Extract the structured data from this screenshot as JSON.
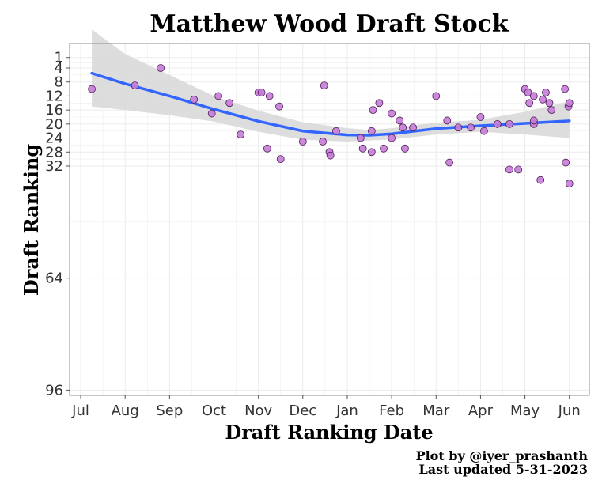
{
  "chart_data": {
    "type": "scatter",
    "title": "Matthew Wood Draft Stock",
    "xlabel": "Draft Ranking Date",
    "ylabel": "Draft Ranking",
    "x_ticks": [
      "Jul",
      "Aug",
      "Sep",
      "Oct",
      "Nov",
      "Dec",
      "Jan",
      "Feb",
      "Mar",
      "Apr",
      "May",
      "Jun"
    ],
    "y_ticks": [
      1,
      4,
      8,
      12,
      16,
      20,
      24,
      28,
      32,
      64,
      96
    ],
    "xlim": [
      -0.25,
      11.45
    ],
    "ylim": [
      97.5,
      -3
    ],
    "caption": [
      "Plot by @iyer_prashanth",
      "Last updated 5-31-2023"
    ],
    "colors": {
      "point_fill": "#c77cd8",
      "point_stroke": "#4d1f57",
      "trend_line": "#3366ff",
      "ribbon": "#d9d9d9",
      "grid": "#ebebeb",
      "panel_border": "#8c8c8c"
    },
    "series": [
      {
        "name": "rankings",
        "points": [
          [
            0.25,
            10
          ],
          [
            1.22,
            9
          ],
          [
            1.8,
            4
          ],
          [
            2.55,
            13
          ],
          [
            2.95,
            17
          ],
          [
            3.1,
            12
          ],
          [
            3.35,
            14
          ],
          [
            3.6,
            23
          ],
          [
            4.0,
            11
          ],
          [
            4.07,
            11
          ],
          [
            4.2,
            27
          ],
          [
            4.25,
            12
          ],
          [
            4.47,
            15
          ],
          [
            4.5,
            30
          ],
          [
            5.0,
            25
          ],
          [
            5.45,
            25
          ],
          [
            5.48,
            9
          ],
          [
            5.6,
            28
          ],
          [
            5.62,
            29
          ],
          [
            5.75,
            22
          ],
          [
            6.3,
            24
          ],
          [
            6.35,
            27
          ],
          [
            6.55,
            22
          ],
          [
            6.55,
            28
          ],
          [
            6.58,
            16
          ],
          [
            6.72,
            14
          ],
          [
            6.82,
            27
          ],
          [
            7.0,
            24
          ],
          [
            7.0,
            17
          ],
          [
            7.18,
            19
          ],
          [
            7.25,
            21
          ],
          [
            7.3,
            27
          ],
          [
            7.48,
            21
          ],
          [
            8.0,
            12
          ],
          [
            8.25,
            19
          ],
          [
            8.3,
            31
          ],
          [
            8.5,
            21
          ],
          [
            8.78,
            21
          ],
          [
            9.0,
            18
          ],
          [
            9.08,
            22
          ],
          [
            9.38,
            20
          ],
          [
            9.65,
            33
          ],
          [
            9.65,
            20
          ],
          [
            9.85,
            33
          ],
          [
            10.0,
            10
          ],
          [
            10.07,
            11
          ],
          [
            10.1,
            14
          ],
          [
            10.2,
            12
          ],
          [
            10.2,
            20
          ],
          [
            10.2,
            19
          ],
          [
            10.35,
            36
          ],
          [
            10.4,
            13
          ],
          [
            10.47,
            11
          ],
          [
            10.55,
            14
          ],
          [
            10.6,
            16
          ],
          [
            10.9,
            10
          ],
          [
            10.92,
            31
          ],
          [
            10.98,
            15
          ],
          [
            11.0,
            14
          ],
          [
            11.0,
            37
          ]
        ]
      }
    ],
    "trend": {
      "x": [
        0.25,
        1,
        2,
        3,
        4,
        5,
        6,
        6.5,
        7,
        8,
        9,
        10,
        11
      ],
      "y": [
        5.5,
        8.5,
        12,
        15.8,
        19.2,
        22,
        23.1,
        23.2,
        22.8,
        21.3,
        20.5,
        19.8,
        19.1
      ],
      "ci_lower": [
        -7,
        0,
        6,
        12,
        16.2,
        19.5,
        21.2,
        21.7,
        21.2,
        19.6,
        18.8,
        16.5,
        13.5
      ],
      "ci_upper": [
        15,
        16,
        17.5,
        19.3,
        22.2,
        24.5,
        25.0,
        24.7,
        24.4,
        23.0,
        22.2,
        23.0,
        24.0
      ]
    }
  }
}
